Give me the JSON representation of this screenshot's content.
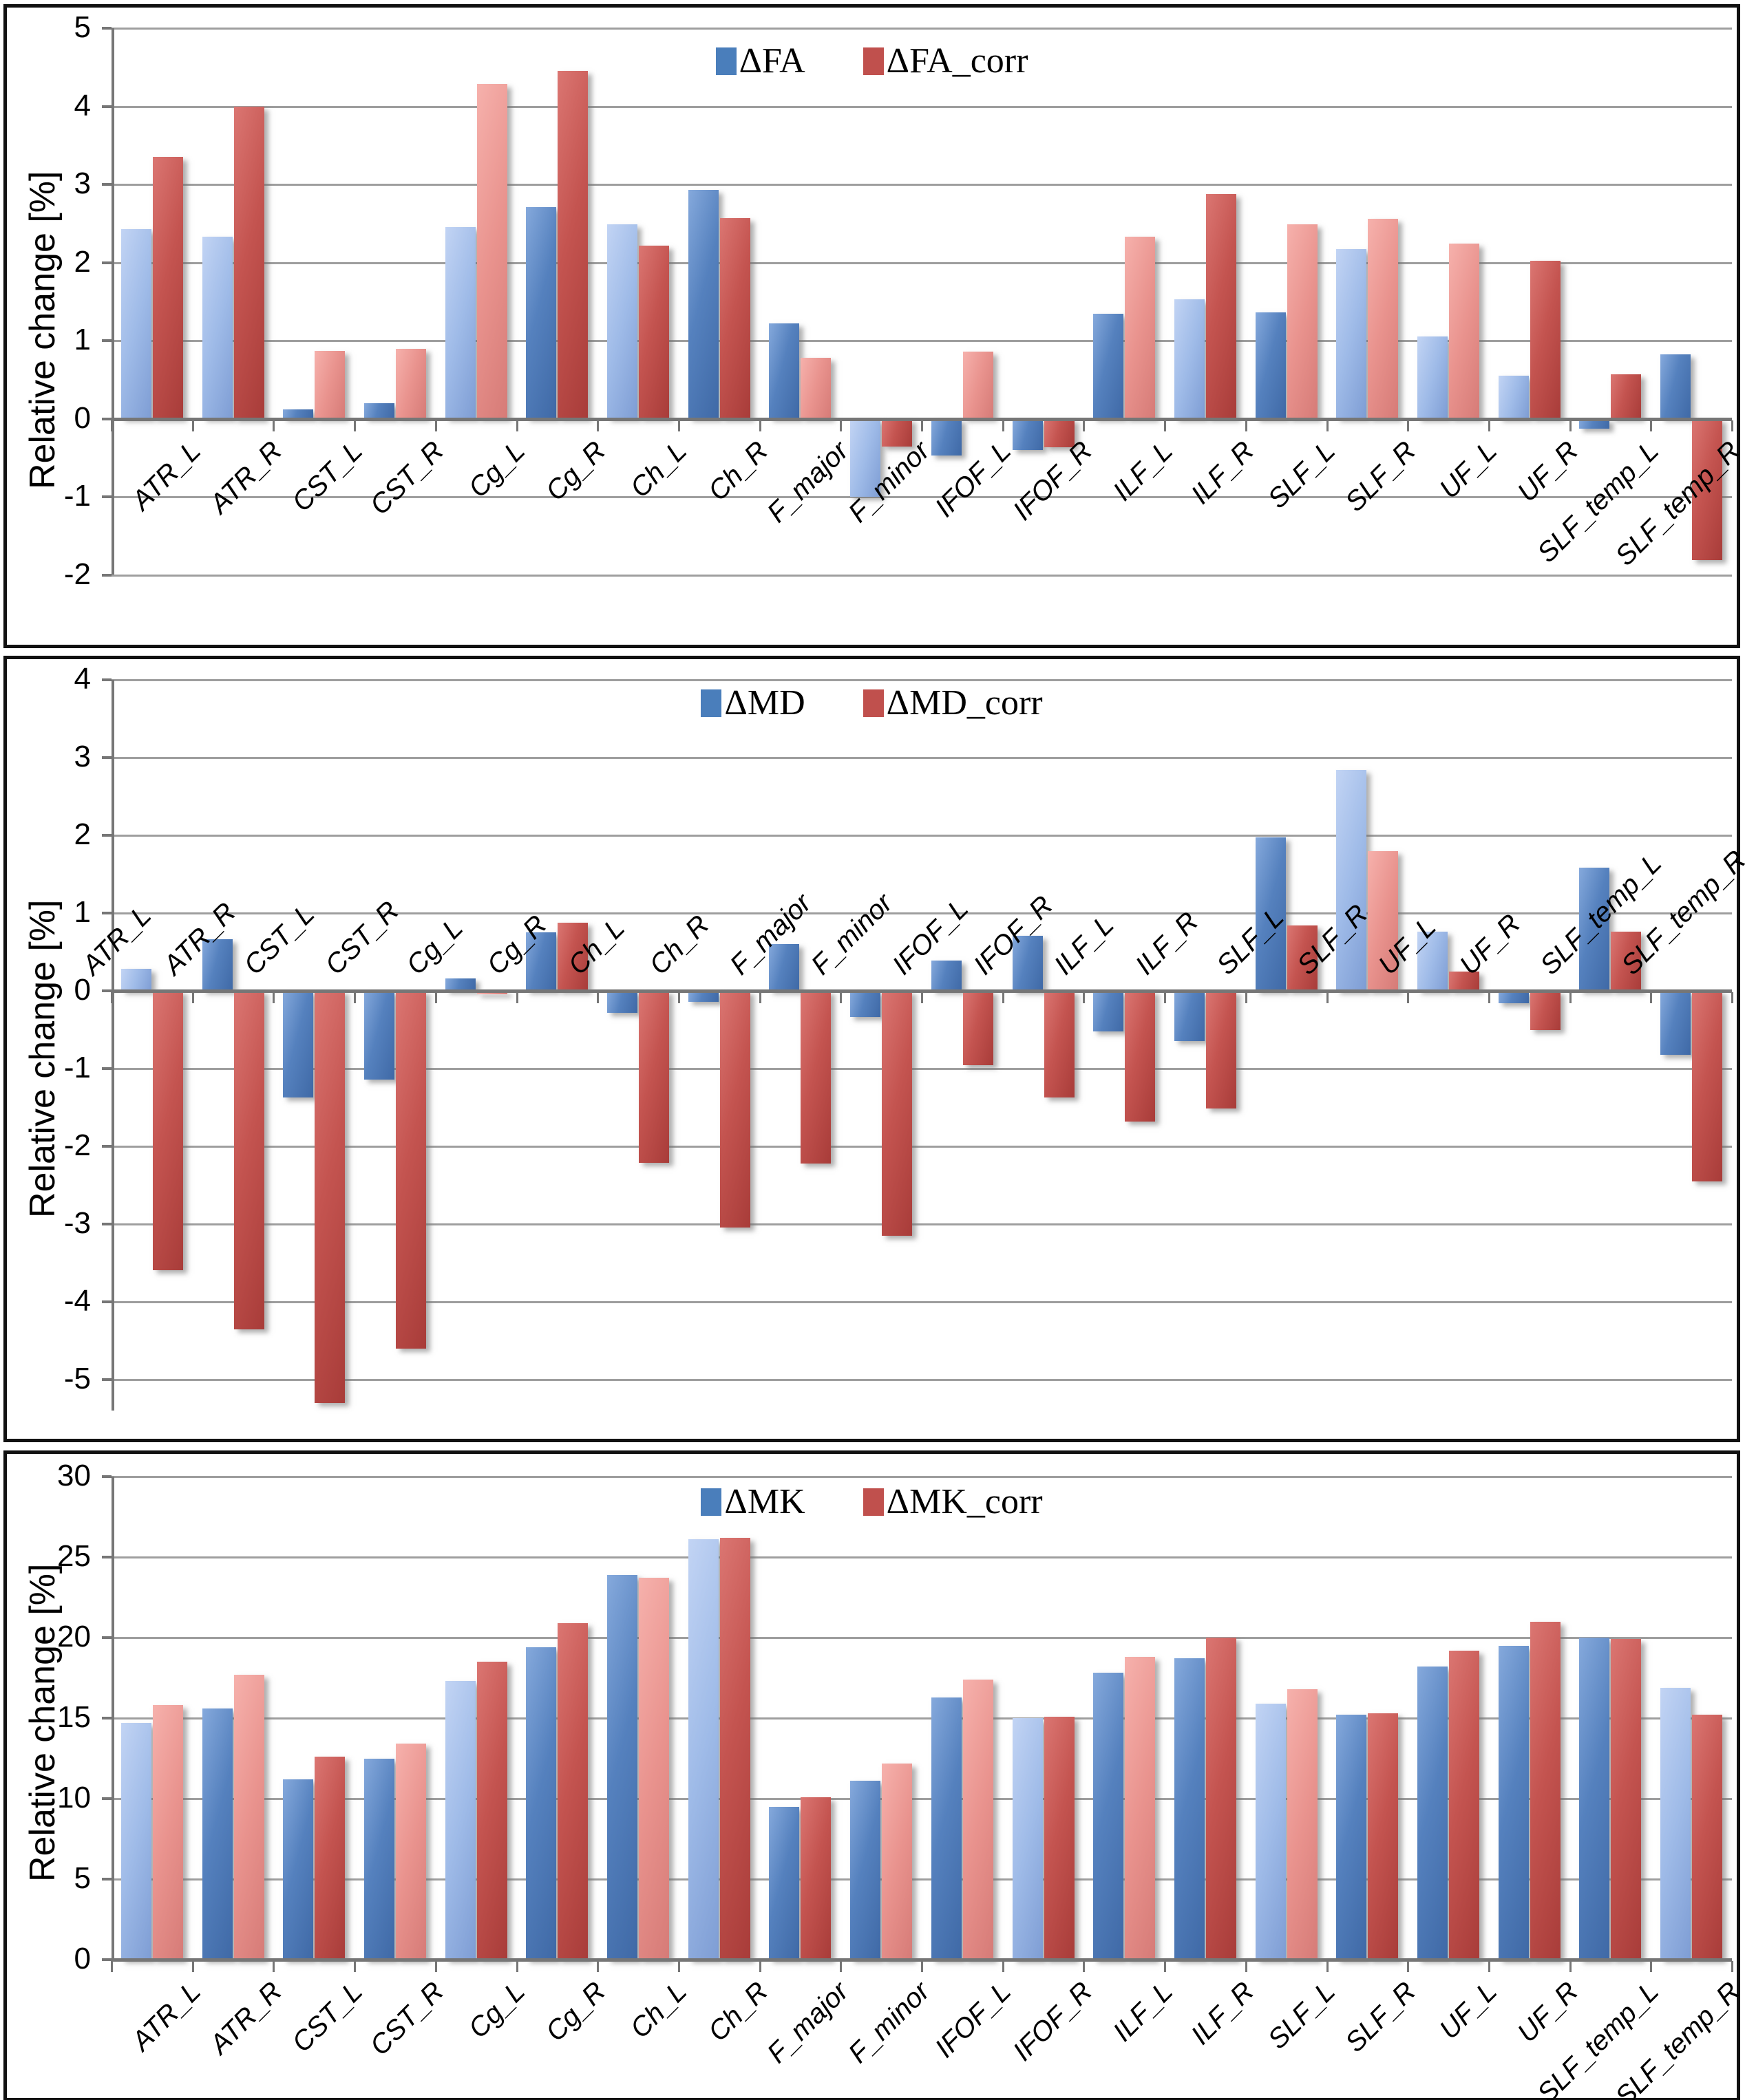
{
  "page": {
    "background": "#ffffff"
  },
  "categories": [
    "ATR_L",
    "ATR_R",
    "CST_L",
    "CST_R",
    "Cg_L",
    "Cg_R",
    "Ch_L",
    "Ch_R",
    "F_major",
    "F_minor",
    "IFOF_L",
    "IFOF_R",
    "ILF_L",
    "ILF_R",
    "SLF_L",
    "SLF_R",
    "UF_L",
    "UF_R",
    "SLF_temp_L",
    "SLF_temp_R"
  ],
  "colors": {
    "blue_dark": "#4a7ebb",
    "blue_light": "#9fbbe8",
    "red_dark": "#c0504d",
    "red_light": "#e9938e",
    "gridline": "#9e9e9e",
    "axis": "#767676",
    "frame": "#111111"
  },
  "chart_data": [
    {
      "type": "bar",
      "title": "",
      "xlabel": "",
      "ylabel": "Relative change [%]",
      "ylim": [
        -2,
        5
      ],
      "yticks": [
        5,
        4,
        3,
        2,
        1,
        0,
        -1,
        -2
      ],
      "grid": true,
      "legend_position": "top-center",
      "x_label_side": "below",
      "series": [
        {
          "name": "ΔFA",
          "values": [
            2.43,
            2.33,
            0.12,
            0.2,
            2.45,
            2.71,
            2.49,
            2.93,
            1.22,
            -1.0,
            -0.47,
            -0.4,
            1.34,
            1.53,
            1.36,
            2.17,
            1.05,
            0.55,
            -0.13,
            0.82
          ],
          "light": [
            1,
            1,
            0,
            0,
            1,
            0,
            1,
            0,
            0,
            1,
            0,
            0,
            0,
            1,
            0,
            1,
            1,
            1,
            0,
            0
          ]
        },
        {
          "name": "ΔFA_corr",
          "values": [
            3.35,
            4.0,
            0.87,
            0.89,
            4.29,
            4.45,
            2.22,
            2.57,
            0.78,
            -0.36,
            0.86,
            -0.37,
            2.33,
            2.88,
            2.49,
            2.56,
            2.24,
            2.02,
            0.57,
            -1.81
          ],
          "light": [
            0,
            0,
            1,
            1,
            1,
            0,
            0,
            0,
            1,
            0,
            1,
            0,
            1,
            0,
            1,
            1,
            1,
            0,
            0,
            0
          ]
        }
      ]
    },
    {
      "type": "bar",
      "title": "",
      "xlabel": "",
      "ylabel": "Relative change [%]",
      "ylim": [
        -5.5,
        4
      ],
      "yticks": [
        4,
        3,
        2,
        1,
        0,
        -1,
        -2,
        -3,
        -4,
        -5
      ],
      "grid": true,
      "legend_position": "top-center",
      "x_label_side": "above",
      "series": [
        {
          "name": "ΔMD",
          "values": [
            0.28,
            0.66,
            -1.37,
            -1.14,
            0.16,
            0.75,
            -0.28,
            -0.14,
            0.6,
            -0.34,
            0.39,
            0.71,
            -0.52,
            -0.65,
            1.97,
            2.84,
            0.76,
            -0.16,
            1.58,
            -0.82
          ],
          "light": [
            1,
            0,
            0,
            0,
            0,
            0,
            0,
            0,
            0,
            0,
            0,
            0,
            0,
            0,
            0,
            1,
            1,
            0,
            0,
            0
          ]
        },
        {
          "name": "ΔMD_corr",
          "values": [
            -3.59,
            -4.35,
            -5.3,
            -4.6,
            -0.04,
            0.88,
            -2.21,
            -3.04,
            -2.22,
            -3.15,
            -0.96,
            -1.37,
            -1.68,
            -1.51,
            0.84,
            1.8,
            0.25,
            -0.5,
            0.76,
            -2.45
          ],
          "light": [
            0,
            0,
            0,
            0,
            1,
            0,
            0,
            0,
            0,
            0,
            0,
            0,
            0,
            0,
            0,
            1,
            0,
            0,
            0,
            0
          ]
        }
      ]
    },
    {
      "type": "bar",
      "title": "",
      "xlabel": "",
      "ylabel": "Relative change [%]",
      "ylim": [
        0,
        30
      ],
      "yticks": [
        30,
        25,
        20,
        15,
        10,
        5,
        0
      ],
      "grid": true,
      "legend_position": "top-center",
      "x_label_side": "below",
      "series": [
        {
          "name": "ΔMK",
          "values": [
            14.7,
            15.6,
            11.2,
            12.5,
            17.3,
            19.4,
            23.9,
            26.1,
            9.5,
            11.1,
            16.3,
            15.0,
            17.8,
            18.7,
            15.9,
            15.2,
            18.2,
            19.5,
            20.0,
            16.9
          ],
          "light": [
            1,
            0,
            0,
            0,
            1,
            0,
            0,
            1,
            0,
            0,
            0,
            1,
            0,
            0,
            1,
            0,
            0,
            0,
            0,
            1
          ]
        },
        {
          "name": "ΔMK_corr",
          "values": [
            15.8,
            17.7,
            12.6,
            13.4,
            18.5,
            20.9,
            23.7,
            26.2,
            10.1,
            12.2,
            17.4,
            15.1,
            18.8,
            20.0,
            16.8,
            15.3,
            19.2,
            21.0,
            19.9,
            15.2
          ],
          "light": [
            1,
            1,
            0,
            1,
            0,
            0,
            1,
            0,
            0,
            1,
            1,
            0,
            1,
            0,
            1,
            0,
            0,
            0,
            0,
            0
          ]
        }
      ]
    }
  ]
}
